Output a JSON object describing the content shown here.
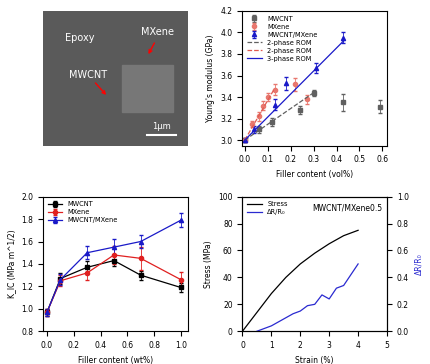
{
  "micrograph": {
    "labels": [
      "Epoxy",
      "MXene",
      "MWCNT"
    ],
    "scale_bar": "1μm"
  },
  "chart_data": [
    {
      "type": "scatter",
      "xlabel": "Filler content (vol%)",
      "ylabel": "Young's modulus (GPa)",
      "xlim": [
        -0.01,
        0.62
      ],
      "xticks": [
        {
          "value": 0,
          "label": "0.0"
        },
        0.1,
        0.2,
        0.3,
        0.4,
        0.5,
        0.6
      ],
      "ylim": [
        2.95,
        4.2
      ],
      "yticks": [
        {
          "value": 3,
          "label": "3.0"
        },
        3.2,
        3.4,
        3.6,
        3.8,
        {
          "value": 4,
          "label": "4.0"
        },
        4.2
      ],
      "legend": "upper left",
      "series": [
        {
          "name": "MWCNT",
          "type": "scatter",
          "color": "#606060",
          "marker": "square",
          "x": [
            0,
            0.06,
            0.12,
            0.24,
            0.3,
            0.43,
            0.59
          ],
          "values": [
            3.0,
            3.1,
            3.17,
            3.28,
            3.44,
            3.35,
            3.31
          ],
          "errors": [
            0.02,
            0.03,
            0.04,
            0.04,
            0.03,
            0.08,
            0.06
          ]
        },
        {
          "name": "MXene",
          "type": "scatter",
          "color": "#e8776e",
          "marker": "circle",
          "x": [
            0,
            0.03,
            0.06,
            0.08,
            0.1,
            0.13,
            0.22,
            0.27
          ],
          "values": [
            3.0,
            3.15,
            3.22,
            3.32,
            3.4,
            3.47,
            3.52,
            3.38
          ],
          "errors": [
            0.02,
            0.03,
            0.04,
            0.04,
            0.04,
            0.05,
            0.06,
            0.04
          ]
        },
        {
          "name": "MWCNT/MXene",
          "type": "scatter",
          "color": "#1a1ac8",
          "marker": "triangle",
          "x": [
            0,
            0.04,
            0.13,
            0.18,
            0.31,
            0.43
          ],
          "values": [
            3.0,
            3.1,
            3.33,
            3.53,
            3.67,
            3.95
          ],
          "errors": [
            0.02,
            0.03,
            0.05,
            0.06,
            0.05,
            0.05
          ]
        },
        {
          "name": "2-phase ROM",
          "type": "line",
          "color": "#606060",
          "line_style": "dashed",
          "x": [
            0,
            0.3
          ],
          "values": [
            3.0,
            3.44
          ]
        },
        {
          "name": "2-phase ROM",
          "type": "line",
          "color": "#e05a50",
          "line_style": "dashed",
          "x": [
            0,
            0.13
          ],
          "values": [
            3.0,
            3.48
          ]
        },
        {
          "name": "3-phase ROM",
          "type": "line",
          "color": "#1a1ac8",
          "line_style": "solid",
          "x": [
            0,
            0.43
          ],
          "values": [
            3.0,
            3.92
          ]
        }
      ]
    },
    {
      "type": "line",
      "xlabel": "Filler content (wt%)",
      "ylabel": "K_IC (MPa m^1/2)",
      "xlim": [
        -0.03,
        1.05
      ],
      "xticks": [
        {
          "value": 0,
          "label": "0.0"
        },
        0.2,
        0.4,
        0.6,
        0.8,
        {
          "value": 1,
          "label": "1.0"
        }
      ],
      "ylim": [
        0.8,
        2.0
      ],
      "yticks": [
        0.8,
        {
          "value": 1,
          "label": "1.0"
        },
        1.2,
        1.4,
        1.6,
        1.8,
        {
          "value": 2,
          "label": "2.0"
        }
      ],
      "legend": "upper left",
      "series": [
        {
          "name": "MWCNT",
          "color": "#000000",
          "marker": "square",
          "x": [
            0,
            0.1,
            0.3,
            0.5,
            0.7,
            1.0
          ],
          "values": [
            0.97,
            1.27,
            1.37,
            1.43,
            1.3,
            1.19
          ],
          "errors": [
            0.03,
            0.05,
            0.06,
            0.05,
            0.04,
            0.04
          ]
        },
        {
          "name": "MXene",
          "color": "#e02020",
          "marker": "circle",
          "x": [
            0,
            0.1,
            0.3,
            0.5,
            0.7,
            1.0
          ],
          "values": [
            0.97,
            1.25,
            1.32,
            1.48,
            1.45,
            1.26
          ],
          "errors": [
            0.03,
            0.05,
            0.06,
            0.08,
            0.1,
            0.07
          ]
        },
        {
          "name": "MWCNT/MXene",
          "color": "#1a1ac8",
          "marker": "triangle",
          "x": [
            0,
            0.1,
            0.3,
            0.5,
            0.7,
            1.0
          ],
          "values": [
            0.97,
            1.26,
            1.5,
            1.55,
            1.6,
            1.79
          ],
          "errors": [
            0.03,
            0.05,
            0.06,
            0.07,
            0.06,
            0.06
          ]
        }
      ]
    },
    {
      "type": "line",
      "title": "MWCNT/MXene0.5",
      "xlabel": "Strain (%)",
      "ylabel": "Stress (MPa)",
      "y2label": "ΔR/R₀",
      "xlim": [
        0,
        5
      ],
      "xticks": [
        0,
        1,
        2,
        3,
        4,
        5
      ],
      "ylim": [
        0,
        100
      ],
      "yticks": [
        0,
        20,
        40,
        60,
        80,
        100
      ],
      "y2lim": [
        0,
        1
      ],
      "y2ticks": [
        {
          "value": 0,
          "label": "0.0"
        },
        0.2,
        0.4,
        0.6,
        0.8,
        {
          "value": 1,
          "label": "1.0"
        }
      ],
      "legend": "upper left",
      "series": [
        {
          "name": "Stress",
          "color": "#000000",
          "x": [
            0,
            0.5,
            1,
            1.5,
            2,
            2.5,
            3,
            3.5,
            4
          ],
          "values": [
            0,
            14,
            28,
            40,
            50,
            58,
            65,
            71,
            75
          ]
        },
        {
          "name": "ΔR/R₀",
          "color": "#2a2ad0",
          "axis": "y2",
          "x": [
            0.5,
            0.75,
            1.0,
            1.25,
            1.5,
            1.75,
            2.0,
            2.25,
            2.5,
            2.75,
            3.0,
            3.25,
            3.5,
            3.75,
            4.0
          ],
          "values": [
            0.0,
            0.02,
            0.04,
            0.07,
            0.1,
            0.13,
            0.15,
            0.19,
            0.2,
            0.27,
            0.24,
            0.32,
            0.34,
            0.42,
            0.5
          ]
        }
      ]
    }
  ]
}
